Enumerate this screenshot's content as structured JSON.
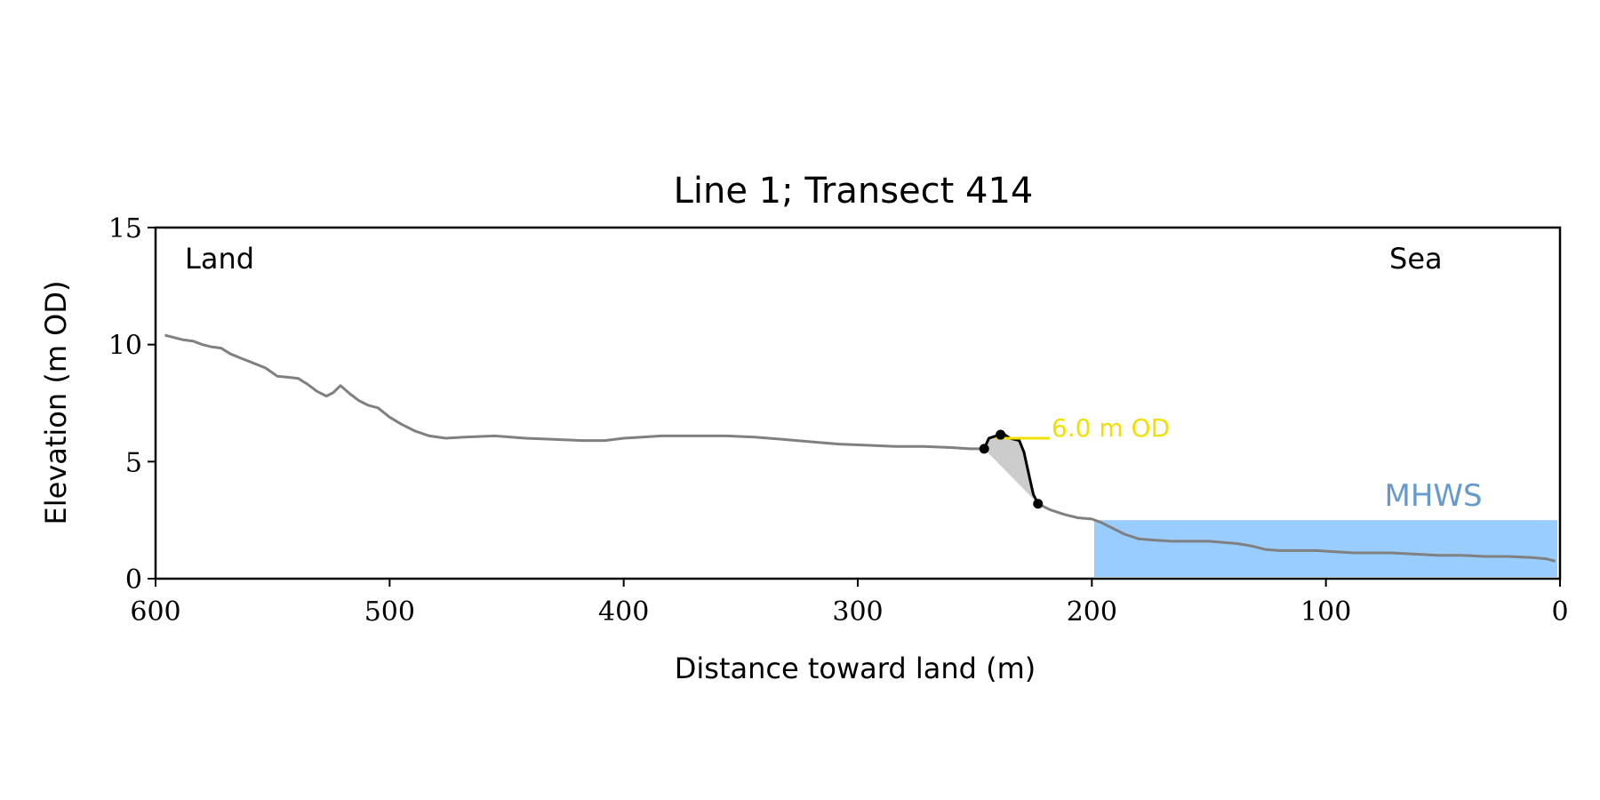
{
  "chart_data": {
    "type": "line",
    "title": "Line 1; Transect 414",
    "xlabel": "Distance toward land (m)",
    "ylabel": "Elevation (m OD)",
    "xlim": [
      600,
      0
    ],
    "ylim": [
      0,
      15
    ],
    "x_reversed": true,
    "xticks": [
      600,
      500,
      400,
      300,
      200,
      100,
      0
    ],
    "yticks": [
      0,
      5,
      10,
      15
    ],
    "grid": false,
    "annotations": {
      "land": "Land",
      "sea": "Sea",
      "od_label": "6.0 m OD",
      "mhws_label": "MHWS"
    },
    "colors": {
      "profile": "#808080",
      "cliff": "#000000",
      "fill": "#cccccc",
      "od_line": "#f0e000",
      "mhws_fill": "#99ccff",
      "mhws_text": "#6699cc"
    },
    "series": [
      {
        "role": "profile",
        "points": [
          [
            596,
            10.4
          ],
          [
            592,
            10.3
          ],
          [
            588,
            10.2
          ],
          [
            584,
            10.15
          ],
          [
            580,
            10.0
          ],
          [
            576,
            9.9
          ],
          [
            572,
            9.85
          ],
          [
            568,
            9.6
          ],
          [
            563,
            9.4
          ],
          [
            558,
            9.2
          ],
          [
            553,
            9.0
          ],
          [
            548,
            8.65
          ],
          [
            543,
            8.6
          ],
          [
            539,
            8.55
          ],
          [
            535,
            8.3
          ],
          [
            531,
            8.0
          ],
          [
            527,
            7.8
          ],
          [
            524,
            7.95
          ],
          [
            521,
            8.25
          ],
          [
            517,
            7.9
          ],
          [
            513,
            7.6
          ],
          [
            509,
            7.4
          ],
          [
            505,
            7.3
          ],
          [
            500,
            6.9
          ],
          [
            495,
            6.6
          ],
          [
            489,
            6.3
          ],
          [
            483,
            6.1
          ],
          [
            476,
            6.0
          ],
          [
            468,
            6.05
          ],
          [
            455,
            6.1
          ],
          [
            442,
            6.0
          ],
          [
            430,
            5.95
          ],
          [
            418,
            5.9
          ],
          [
            408,
            5.9
          ],
          [
            400,
            6.0
          ],
          [
            392,
            6.05
          ],
          [
            384,
            6.1
          ],
          [
            370,
            6.1
          ],
          [
            356,
            6.1
          ],
          [
            344,
            6.05
          ],
          [
            332,
            5.95
          ],
          [
            320,
            5.85
          ],
          [
            308,
            5.75
          ],
          [
            296,
            5.7
          ],
          [
            284,
            5.65
          ],
          [
            272,
            5.65
          ],
          [
            260,
            5.6
          ],
          [
            252,
            5.55
          ],
          [
            246,
            5.55
          ]
        ]
      },
      {
        "role": "cliff-top",
        "points": [
          [
            246,
            5.55
          ],
          [
            244,
            6.0
          ],
          [
            241,
            6.1
          ],
          [
            238,
            6.2
          ],
          [
            235,
            6.0
          ],
          [
            231,
            5.9
          ],
          [
            229,
            5.4
          ],
          [
            227,
            4.5
          ],
          [
            225,
            3.6
          ],
          [
            223,
            3.2
          ]
        ]
      },
      {
        "role": "profile",
        "points": [
          [
            223,
            3.2
          ],
          [
            218,
            2.95
          ],
          [
            212,
            2.75
          ],
          [
            206,
            2.6
          ],
          [
            200,
            2.55
          ],
          [
            196,
            2.4
          ],
          [
            192,
            2.2
          ],
          [
            186,
            1.9
          ],
          [
            180,
            1.7
          ],
          [
            174,
            1.65
          ],
          [
            166,
            1.6
          ],
          [
            158,
            1.6
          ],
          [
            150,
            1.6
          ],
          [
            144,
            1.55
          ],
          [
            138,
            1.5
          ],
          [
            132,
            1.4
          ],
          [
            126,
            1.25
          ],
          [
            120,
            1.2
          ],
          [
            112,
            1.2
          ],
          [
            104,
            1.2
          ],
          [
            96,
            1.15
          ],
          [
            88,
            1.1
          ],
          [
            80,
            1.1
          ],
          [
            72,
            1.1
          ],
          [
            62,
            1.05
          ],
          [
            52,
            1.0
          ],
          [
            42,
            1.0
          ],
          [
            32,
            0.95
          ],
          [
            22,
            0.95
          ],
          [
            12,
            0.9
          ],
          [
            6,
            0.85
          ],
          [
            2,
            0.75
          ]
        ]
      }
    ],
    "cliff_points": [
      [
        246,
        5.55
      ],
      [
        239,
        6.15
      ],
      [
        223,
        3.2
      ]
    ],
    "od_level": {
      "y": 6.0,
      "x_start": 241,
      "x_end": 218
    },
    "mhws": {
      "level": 2.5,
      "x_start": 199,
      "x_end": 0
    }
  }
}
